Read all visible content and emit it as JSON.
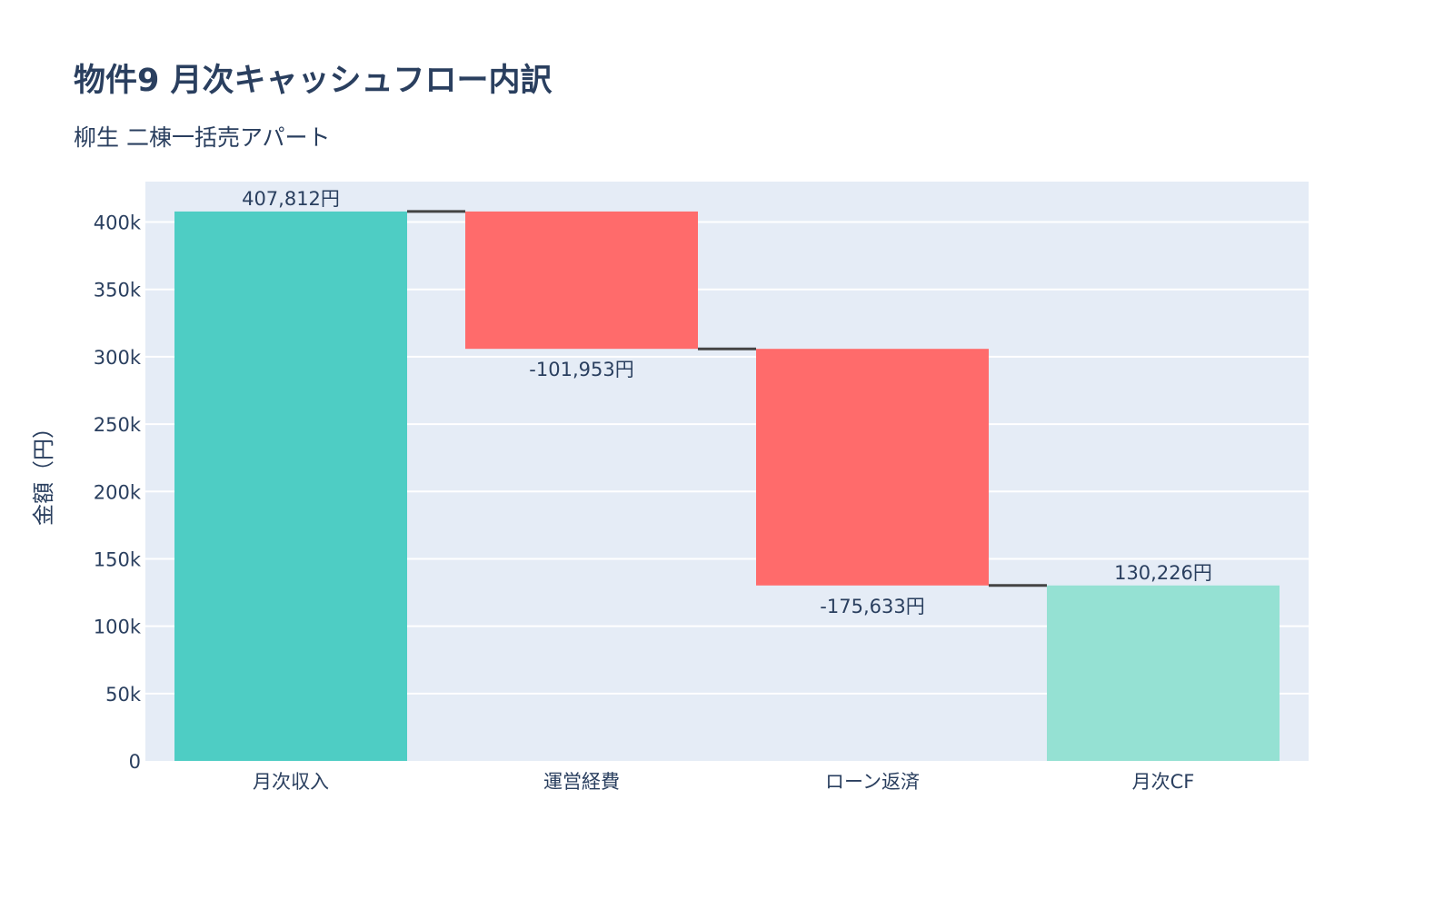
{
  "chart_data": {
    "type": "waterfall",
    "title": "物件9 月次キャッシュフロー内訳",
    "subtitle": "柳生 二棟一括売アパート",
    "xlabel": "",
    "ylabel": "金額（円）",
    "categories": [
      "月次収入",
      "運営経費",
      "ローン返済",
      "月次CF"
    ],
    "measures": [
      "relative",
      "relative",
      "relative",
      "total"
    ],
    "values": [
      407812,
      -101953,
      -175633,
      130226
    ],
    "data_labels": [
      "407,812円",
      "-101,953円",
      "-175,633円",
      "130,226円"
    ],
    "ylim": [
      0,
      430000
    ],
    "yticks": [
      0,
      50000,
      100000,
      150000,
      200000,
      250000,
      300000,
      350000,
      400000
    ],
    "ytick_labels": [
      "0",
      "50k",
      "100k",
      "150k",
      "200k",
      "250k",
      "300k",
      "350k",
      "400k"
    ],
    "grid": true,
    "colors": {
      "increasing": "#4ECDC4",
      "decreasing": "#FF6B6B",
      "total": "#95E1D3",
      "connector": "#444444",
      "plot_bg": "#E5ECF6"
    }
  }
}
